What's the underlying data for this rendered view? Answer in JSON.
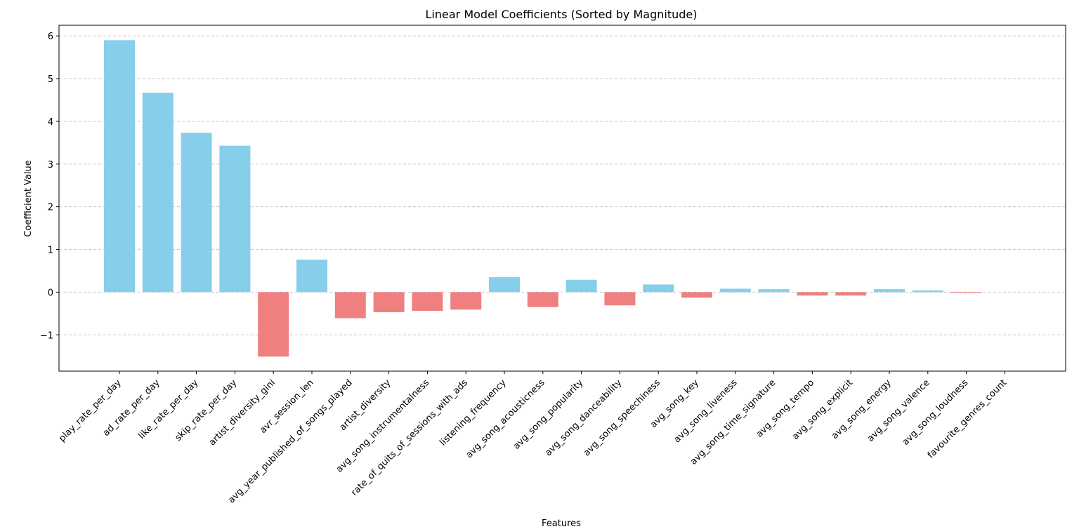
{
  "chart_data": {
    "type": "bar",
    "title": "Linear Model Coefficients (Sorted by Magnitude)",
    "xlabel": "Features",
    "ylabel": "Coefficient Value",
    "ylim": [
      -1.85,
      6.25
    ],
    "yticks": [
      -1,
      0,
      1,
      2,
      3,
      4,
      5,
      6
    ],
    "ytick_labels": [
      "−1",
      "0",
      "1",
      "2",
      "3",
      "4",
      "5",
      "6"
    ],
    "grid": "y-dashed",
    "legend": "none",
    "colors": {
      "positive": "#87CEEB",
      "negative": "#F08080",
      "grid": "#c8c8c8",
      "axis": "#000000"
    },
    "categories": [
      "play_rate_per_day",
      "ad_rate_per_day",
      "like_rate_per_day",
      "skip_rate_per_day",
      "artist_diversity_gini",
      "avr_session_len",
      "avg_year_published_of_songs_played",
      "artist_diversity",
      "avg_song_instrumentalness",
      "rate_of_quits_of_sessions_with_ads",
      "listening_frequency",
      "avg_song_acousticness",
      "avg_song_popularity",
      "avg_song_danceability",
      "avg_song_speechiness",
      "avg_song_key",
      "avg_song_liveness",
      "avg_song_time_signature",
      "avg_song_tempo",
      "avg_song_explicit",
      "avg_song_energy",
      "avg_song_valence",
      "avg_song_loudness",
      "favourite_genres_count"
    ],
    "values": [
      5.9,
      4.67,
      3.73,
      3.43,
      -1.51,
      0.76,
      -0.61,
      -0.47,
      -0.44,
      -0.41,
      0.35,
      -0.35,
      0.29,
      -0.31,
      0.18,
      -0.13,
      0.08,
      0.07,
      -0.08,
      -0.08,
      0.07,
      0.04,
      -0.02,
      0.0
    ]
  }
}
